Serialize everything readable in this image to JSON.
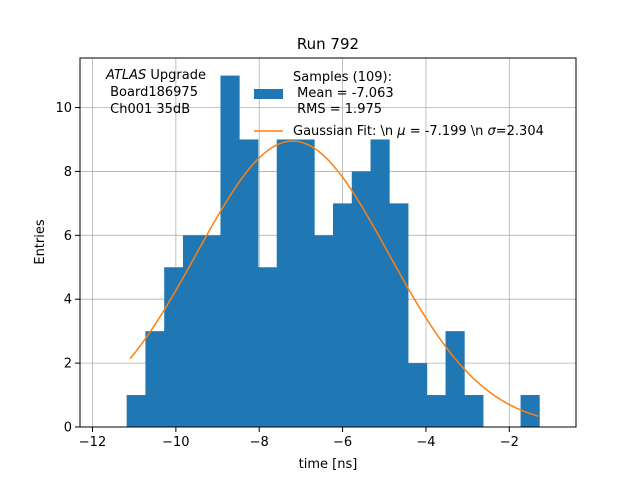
{
  "chart_data": {
    "type": "bar",
    "title": "Run 792",
    "xlabel": "time [ns]",
    "ylabel": "Entries",
    "xlim": [
      -12.3,
      -0.4
    ],
    "ylim": [
      0,
      11.55
    ],
    "xticks": [
      -12,
      -10,
      -8,
      -6,
      -4,
      -2
    ],
    "xtick_labels": [
      "−12",
      "−10",
      "−8",
      "−6",
      "−4",
      "−2"
    ],
    "yticks": [
      0,
      2,
      4,
      6,
      8,
      10
    ],
    "ytick_labels": [
      "0",
      "2",
      "4",
      "6",
      "8",
      "10"
    ],
    "grid": true,
    "bar_color": "#1f77b4",
    "fit_color": "#ff7f0e",
    "bin_edges": [
      -11.18,
      -10.73,
      -10.28,
      -9.83,
      -9.38,
      -8.93,
      -8.48,
      -8.03,
      -7.58,
      -7.13,
      -6.68,
      -6.23,
      -5.78,
      -5.33,
      -4.88,
      -4.43,
      -3.98,
      -3.53,
      -3.08,
      -2.63,
      -2.18,
      -1.73,
      -1.28
    ],
    "counts": [
      1,
      3,
      5,
      6,
      6,
      11,
      9,
      5,
      9,
      9,
      6,
      7,
      8,
      9,
      7,
      2,
      1,
      3,
      1,
      0,
      0,
      1
    ],
    "gaussian_fit": {
      "mu": -7.199,
      "sigma": 2.304,
      "amplitude": 8.95,
      "x_range": [
        -11.1,
        -1.3
      ]
    },
    "legend": {
      "placement": "upper-center",
      "entries": [
        {
          "kind": "bar",
          "lines": [
            "Samples (109):",
            " Mean = -7.063",
            " RMS = 1.975"
          ]
        },
        {
          "kind": "line",
          "prefix": "Gaussian Fit: \\n ",
          "mu_symbol": "μ",
          "mu_part": " = -7.199 \\n ",
          "sigma_symbol": "σ",
          "sigma_part": "=2.304"
        }
      ]
    },
    "annotation": {
      "atlas_italic": "ATLAS",
      "atlas_rest": " Upgrade",
      "line2": " Board186975",
      "line3": " Ch001 35dB"
    }
  }
}
